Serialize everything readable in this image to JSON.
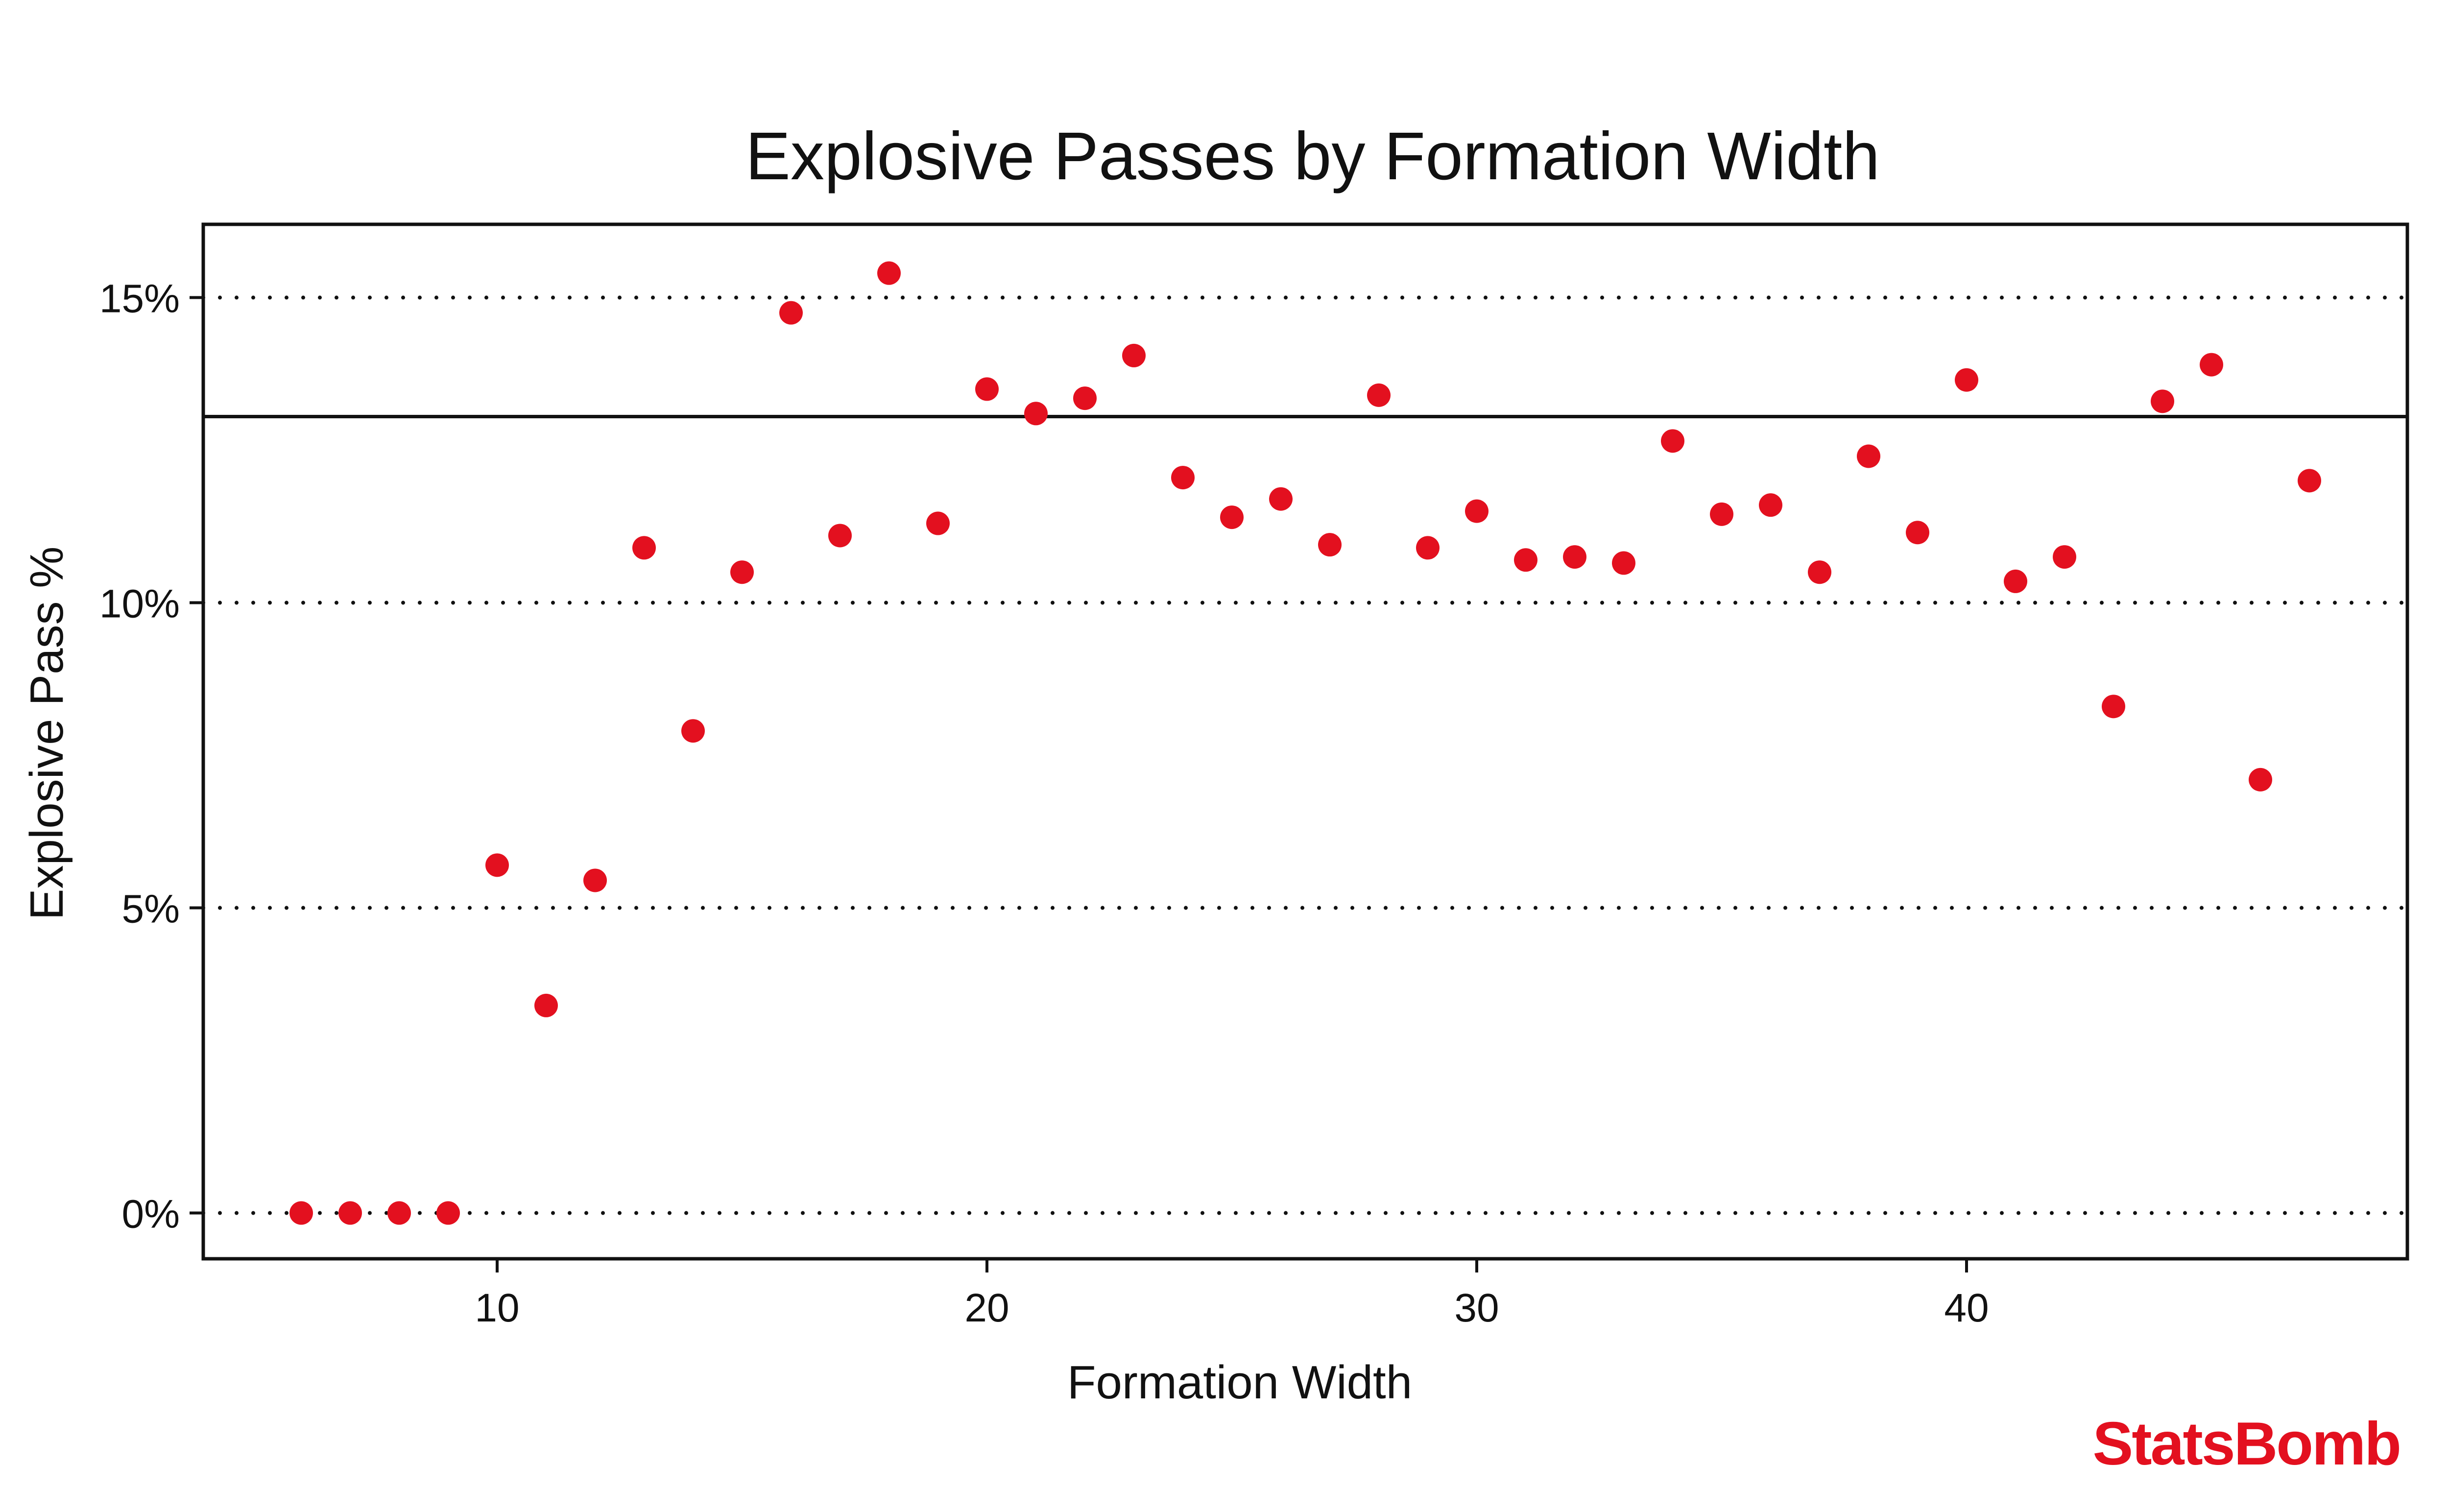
{
  "brand": {
    "name": "StatsBomb",
    "color": "#e3101f"
  },
  "chart_data": {
    "type": "scatter",
    "title": "Explosive Passes by Formation Width",
    "xlabel": "Formation Width",
    "ylabel": "Explosive Pass %",
    "xlim": [
      4,
      49
    ],
    "ylim": [
      -0.75,
      16.2
    ],
    "x_ticks": [
      10,
      20,
      30,
      40
    ],
    "x_tick_labels": [
      "10",
      "20",
      "30",
      "40"
    ],
    "y_ticks": [
      0,
      5,
      10,
      15
    ],
    "y_tick_labels": [
      "0%",
      "5%",
      "10%",
      "15%"
    ],
    "grid": {
      "style": "dotted",
      "axis": "y"
    },
    "reference_line": {
      "y": 13.05,
      "style": "solid"
    },
    "marker_color": "#e3101f",
    "series": [
      {
        "x": [
          6,
          7,
          8,
          9,
          10,
          11,
          12,
          13,
          14,
          15,
          16,
          17,
          18,
          19,
          20,
          21,
          22,
          23,
          24,
          25,
          26,
          27,
          28,
          29,
          30,
          31,
          32,
          33,
          34,
          35,
          36,
          37,
          38,
          39,
          40,
          41,
          42,
          43,
          44,
          45,
          46,
          47
        ],
        "y": [
          0.0,
          0.0,
          0.0,
          0.0,
          5.7,
          3.4,
          5.45,
          10.9,
          7.9,
          10.5,
          14.75,
          11.1,
          15.4,
          11.3,
          13.5,
          13.1,
          13.35,
          14.05,
          12.05,
          11.4,
          11.7,
          10.95,
          13.4,
          10.9,
          11.5,
          10.7,
          10.75,
          10.65,
          12.65,
          11.45,
          11.6,
          10.5,
          12.4,
          11.15,
          13.65,
          10.35,
          10.75,
          8.3,
          13.3,
          13.9,
          7.1,
          12.0
        ]
      }
    ]
  }
}
